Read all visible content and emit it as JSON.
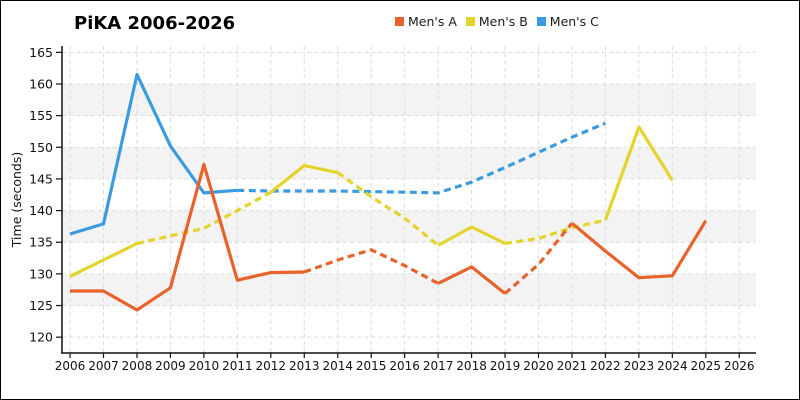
{
  "title": "PiKA 2006-2026",
  "ylabel": "Time (seconds)",
  "legend": [
    {
      "label": "Men's A",
      "color": "#E8632C"
    },
    {
      "label": "Men's B",
      "color": "#E4D32B"
    },
    {
      "label": "Men's C",
      "color": "#3B9BE1"
    }
  ],
  "chart_data": {
    "type": "line",
    "title": "PiKA 2006-2026",
    "xlabel": "",
    "ylabel": "Time (seconds)",
    "x": [
      2006,
      2007,
      2008,
      2009,
      2010,
      2011,
      2012,
      2013,
      2014,
      2015,
      2016,
      2017,
      2018,
      2019,
      2020,
      2021,
      2022,
      2023,
      2024,
      2025,
      2026
    ],
    "series": [
      {
        "name": "Men's A",
        "color": "#E8632C",
        "values": [
          127.3,
          127.3,
          124.3,
          127.8,
          147.3,
          129.0,
          130.2,
          130.3,
          132.2,
          133.8,
          131.3,
          128.5,
          131.1,
          126.9,
          131.5,
          138.0,
          133.6,
          129.4,
          129.7,
          138.4,
          null
        ],
        "segments": [
          {
            "from": 2006,
            "to": 2013,
            "style": "solid"
          },
          {
            "from": 2013,
            "to": 2017,
            "style": "dashed"
          },
          {
            "from": 2017,
            "to": 2019,
            "style": "solid"
          },
          {
            "from": 2019,
            "to": 2021,
            "style": "dashed"
          },
          {
            "from": 2021,
            "to": 2025,
            "style": "solid"
          }
        ]
      },
      {
        "name": "Men's B",
        "color": "#E4D32B",
        "values": [
          129.6,
          132.2,
          134.8,
          136.0,
          137.2,
          140.0,
          142.9,
          147.1,
          146.0,
          142.2,
          138.8,
          134.5,
          137.4,
          134.8,
          135.6,
          137.3,
          138.5,
          153.2,
          144.8,
          null,
          null
        ],
        "segments": [
          {
            "from": 2006,
            "to": 2008,
            "style": "solid"
          },
          {
            "from": 2008,
            "to": 2012,
            "style": "dashed"
          },
          {
            "from": 2012,
            "to": 2014,
            "style": "solid"
          },
          {
            "from": 2014,
            "to": 2017,
            "style": "dashed"
          },
          {
            "from": 2017,
            "to": 2019,
            "style": "solid"
          },
          {
            "from": 2019,
            "to": 2022,
            "style": "dashed"
          },
          {
            "from": 2022,
            "to": 2024,
            "style": "solid"
          }
        ]
      },
      {
        "name": "Men's C",
        "color": "#3B9BE1",
        "values": [
          136.3,
          137.9,
          161.5,
          150.2,
          142.8,
          143.2,
          143.1,
          143.1,
          143.1,
          143.0,
          142.9,
          142.8,
          144.5,
          146.8,
          149.2,
          151.6,
          153.8,
          null,
          null,
          null,
          null
        ],
        "segments": [
          {
            "from": 2006,
            "to": 2011,
            "style": "solid"
          },
          {
            "from": 2011,
            "to": 2022,
            "style": "dashed"
          }
        ]
      }
    ],
    "xticks": [
      2006,
      2007,
      2008,
      2009,
      2010,
      2011,
      2012,
      2013,
      2014,
      2015,
      2016,
      2017,
      2018,
      2019,
      2020,
      2021,
      2022,
      2023,
      2024,
      2025,
      2026
    ],
    "yticks": [
      120,
      125,
      130,
      135,
      140,
      145,
      150,
      155,
      160,
      165
    ],
    "xlim": [
      2005.76,
      2026.5
    ],
    "ylim": [
      117.5,
      166
    ],
    "bands": [
      [
        125,
        130
      ],
      [
        135,
        140
      ],
      [
        145,
        150
      ],
      [
        155,
        160
      ]
    ],
    "band_color": "#f3f3f3",
    "grid": true,
    "grid_color": "#dcdcdc",
    "legend_position": "top-right"
  }
}
